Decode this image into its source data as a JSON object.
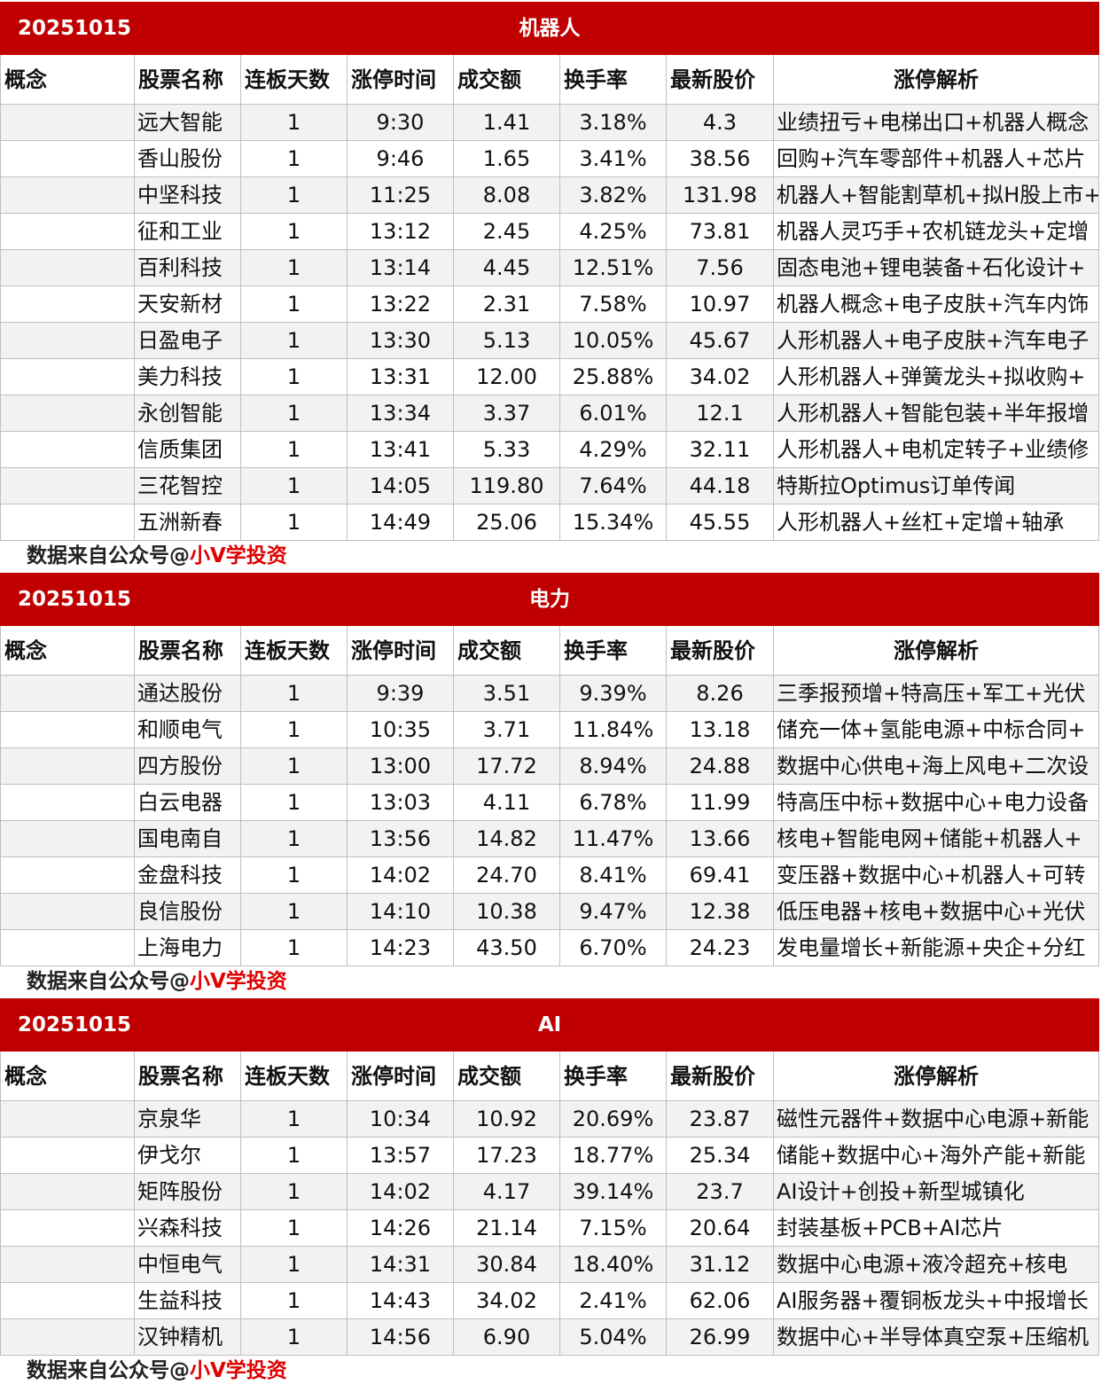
{
  "sections": [
    {
      "date": "20251015",
      "title": "机器人",
      "columns": [
        "概念",
        "股票名称",
        "连板天数",
        "涨停时间",
        "成交额",
        "换手率",
        "最新股价",
        "涨停解析"
      ],
      "rows": [
        [
          "远大智能",
          "1",
          "9:30",
          "1.41",
          "3.18%",
          "4.3",
          "业绩扭亏+电梯出口+机器人概念"
        ],
        [
          "香山股份",
          "1",
          "9:46",
          "1.65",
          "3.41%",
          "38.56",
          "回购+汽车零部件+机器人+芯片"
        ],
        [
          "中坚科技",
          "1",
          "11:25",
          "8.08",
          "3.82%",
          "131.98",
          "机器人+智能割草机+拟H股上市+"
        ],
        [
          "征和工业",
          "1",
          "13:12",
          "2.45",
          "4.25%",
          "73.81",
          "机器人灵巧手+农机链龙头+定增"
        ],
        [
          "百利科技",
          "1",
          "13:14",
          "4.45",
          "12.51%",
          "7.56",
          "固态电池+锂电装备+石化设计+"
        ],
        [
          "天安新材",
          "1",
          "13:22",
          "2.31",
          "7.58%",
          "10.97",
          "机器人概念+电子皮肤+汽车内饰"
        ],
        [
          "日盈电子",
          "1",
          "13:30",
          "5.13",
          "10.05%",
          "45.67",
          "人形机器人+电子皮肤+汽车电子"
        ],
        [
          "美力科技",
          "1",
          "13:31",
          "12.00",
          "25.88%",
          "34.02",
          "人形机器人+弹簧龙头+拟收购+"
        ],
        [
          "永创智能",
          "1",
          "13:34",
          "3.37",
          "6.01%",
          "12.1",
          "人形机器人+智能包装+半年报增"
        ],
        [
          "信质集团",
          "1",
          "13:41",
          "5.33",
          "4.29%",
          "32.11",
          "人形机器人+电机定转子+业绩修"
        ],
        [
          "三花智控",
          "1",
          "14:05",
          "119.80",
          "7.64%",
          "44.18",
          "特斯拉Optimus订单传闻"
        ],
        [
          "五洲新春",
          "1",
          "14:49",
          "25.06",
          "15.34%",
          "45.55",
          "人形机器人+丝杠+定增+轴承"
        ]
      ],
      "watermark": {
        "prefix": "数据来自公众号@",
        "highlight": "小V学投资"
      }
    },
    {
      "date": "20251015",
      "title": "电力",
      "columns": [
        "概念",
        "股票名称",
        "连板天数",
        "涨停时间",
        "成交额",
        "换手率",
        "最新股价",
        "涨停解析"
      ],
      "rows": [
        [
          "通达股份",
          "1",
          "9:39",
          "3.51",
          "9.39%",
          "8.26",
          "三季报预增+特高压+军工+光伏"
        ],
        [
          "和顺电气",
          "1",
          "10:35",
          "3.71",
          "11.84%",
          "13.18",
          "储充一体+氢能电源+中标合同+"
        ],
        [
          "四方股份",
          "1",
          "13:00",
          "17.72",
          "8.94%",
          "24.88",
          "数据中心供电+海上风电+二次设"
        ],
        [
          "白云电器",
          "1",
          "13:03",
          "4.11",
          "6.78%",
          "11.99",
          "特高压中标+数据中心+电力设备"
        ],
        [
          "国电南自",
          "1",
          "13:56",
          "14.82",
          "11.47%",
          "13.66",
          "核电+智能电网+储能+机器人+"
        ],
        [
          "金盘科技",
          "1",
          "14:02",
          "24.70",
          "8.41%",
          "69.41",
          "变压器+数据中心+机器人+可转"
        ],
        [
          "良信股份",
          "1",
          "14:10",
          "10.38",
          "9.47%",
          "12.38",
          "低压电器+核电+数据中心+光伏"
        ],
        [
          "上海电力",
          "1",
          "14:23",
          "43.50",
          "6.70%",
          "24.23",
          "发电量增长+新能源+央企+分红"
        ]
      ],
      "watermark": {
        "prefix": "数据来自公众号@",
        "highlight": "小V学投资"
      }
    },
    {
      "date": "20251015",
      "title": "AI",
      "columns": [
        "概念",
        "股票名称",
        "连板天数",
        "涨停时间",
        "成交额",
        "换手率",
        "最新股价",
        "涨停解析"
      ],
      "rows": [
        [
          "京泉华",
          "1",
          "10:34",
          "10.92",
          "20.69%",
          "23.87",
          "磁性元器件+数据中心电源+新能"
        ],
        [
          "伊戈尔",
          "1",
          "13:57",
          "17.23",
          "18.77%",
          "25.34",
          "储能+数据中心+海外产能+新能"
        ],
        [
          "矩阵股份",
          "1",
          "14:02",
          "4.17",
          "39.14%",
          "23.7",
          "AI设计+创投+新型城镇化"
        ],
        [
          "兴森科技",
          "1",
          "14:26",
          "21.14",
          "7.15%",
          "20.64",
          "封装基板+PCB+AI芯片"
        ],
        [
          "中恒电气",
          "1",
          "14:31",
          "30.84",
          "18.40%",
          "31.12",
          "数据中心电源+液冷超充+核电"
        ],
        [
          "生益科技",
          "1",
          "14:43",
          "34.02",
          "2.41%",
          "62.06",
          "AI服务器+覆铜板龙头+中报增长"
        ],
        [
          "汉钟精机",
          "1",
          "14:56",
          "6.90",
          "5.04%",
          "26.99",
          "数据中心+半导体真空泵+压缩机"
        ]
      ],
      "watermark": {
        "prefix": "数据来自公众号@",
        "highlight": "小V学投资"
      }
    }
  ]
}
